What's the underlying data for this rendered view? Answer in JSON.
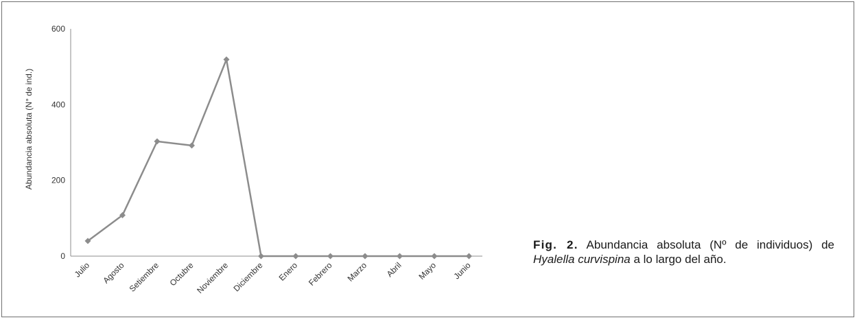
{
  "chart_data": {
    "type": "line",
    "categories": [
      "Julio",
      "Agosto",
      "Setiembre",
      "Octubre",
      "Noviembre",
      "Diciembre",
      "Enero",
      "Febrero",
      "Marzo",
      "Abril",
      "Mayo",
      "Junio"
    ],
    "values": [
      40,
      108,
      303,
      292,
      519,
      0,
      0,
      0,
      0,
      0,
      0,
      0
    ],
    "ylabel": "Abundancia absoluta (N° de ind.)",
    "xlabel": "",
    "ylim": [
      0,
      600
    ],
    "yticks": [
      0,
      200,
      400,
      600
    ],
    "grid": false,
    "marker": "diamond",
    "line_color": "#8c8c8c",
    "axis_color": "#8c8c8c"
  },
  "caption": {
    "label": "Fig. 2.",
    "text_before": " Abundancia absoluta (Nº de individuos) de ",
    "species": "Hyalella curvispina",
    "text_after": " a lo largo del año."
  }
}
